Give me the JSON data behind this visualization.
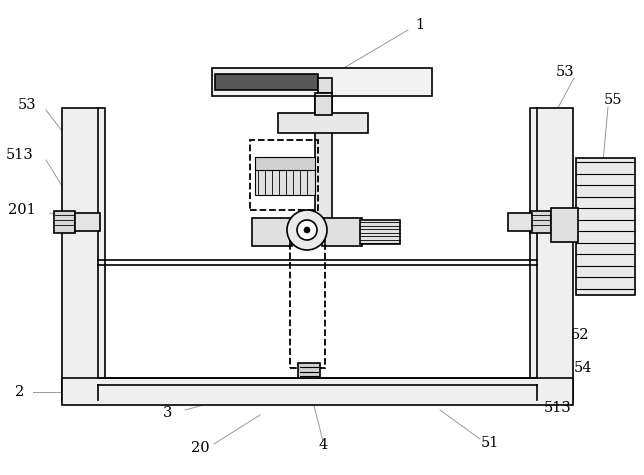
{
  "bg_color": "#ffffff",
  "line_color": "#000000",
  "lw": 1.2,
  "figsize": [
    6.44,
    4.75
  ],
  "dpi": 100
}
